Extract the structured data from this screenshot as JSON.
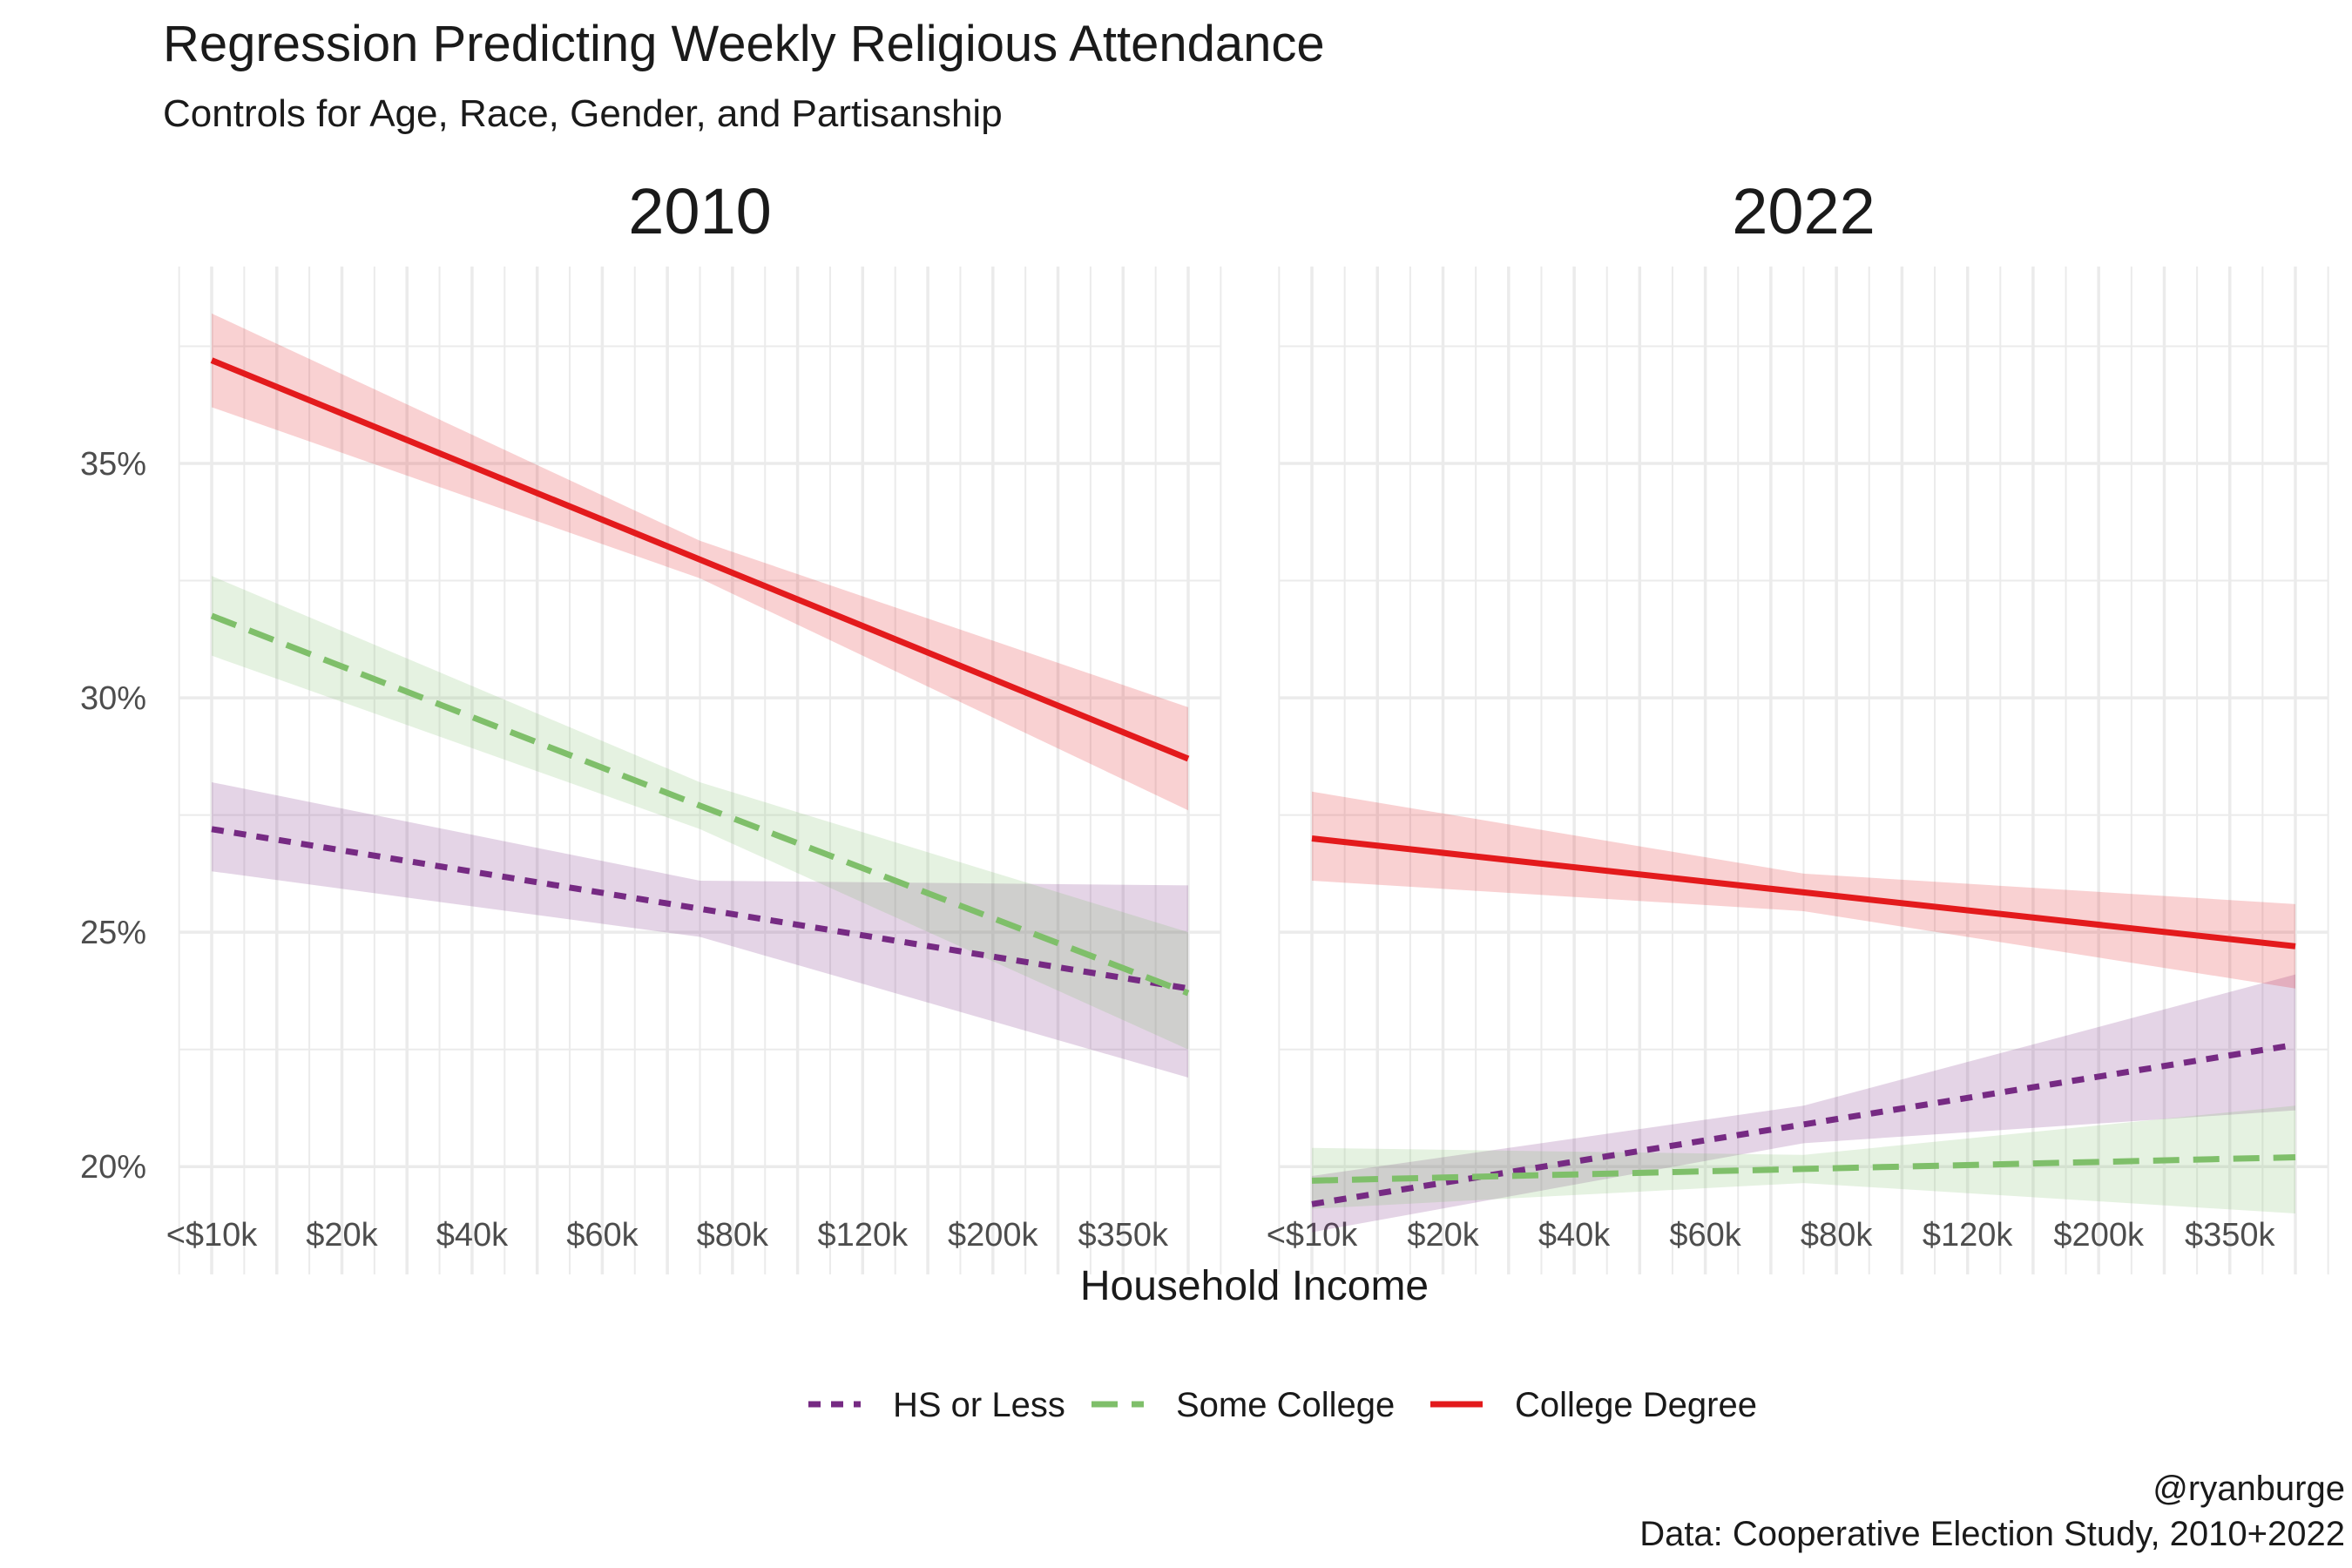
{
  "chart_data": {
    "type": "line",
    "title": "Regression Predicting Weekly Religious Attendance",
    "subtitle": "Controls for Age, Race, Gender, and Partisanship",
    "xlabel": "Household Income",
    "ylabel": "",
    "x_tick_values": [
      1,
      3,
      5,
      7,
      9,
      11,
      13,
      15
    ],
    "x_tick_labels": [
      "<$10k",
      "$20k",
      "$40k",
      "$60k",
      "$80k",
      "$120k",
      "$200k",
      "$350k"
    ],
    "xlim": [
      0.5,
      16.5
    ],
    "y_ticks": [
      20,
      25,
      30,
      35
    ],
    "y_tick_labels": [
      "20%",
      "25%",
      "30%",
      "35%"
    ],
    "ylim": [
      17.7,
      39.2
    ],
    "grid": true,
    "legend_position": "bottom",
    "legend": [
      {
        "name": "HS or Less",
        "color": "#762a83",
        "dash": "dotted"
      },
      {
        "name": "Some College",
        "color": "#7fbf6a",
        "dash": "dashed"
      },
      {
        "name": "College Degree",
        "color": "#e31a1c",
        "dash": "solid"
      }
    ],
    "caption": [
      "@ryanburge",
      "Data: Cooperative Election Study, 2010+2022"
    ],
    "fit_x": [
      1,
      8.5,
      16
    ],
    "panels": [
      {
        "label": "2010",
        "series": [
          {
            "name": "HS or Less",
            "y": [
              27.2,
              25.5,
              23.8
            ],
            "lower": [
              26.3,
              24.9,
              21.9
            ],
            "upper": [
              28.2,
              26.1,
              26.0
            ]
          },
          {
            "name": "Some College",
            "y": [
              31.75,
              27.7,
              23.7
            ],
            "lower": [
              30.9,
              27.2,
              22.5
            ],
            "upper": [
              32.6,
              28.2,
              25.0
            ]
          },
          {
            "name": "College Degree",
            "y": [
              37.2,
              32.95,
              28.7
            ],
            "lower": [
              36.2,
              32.55,
              27.6
            ],
            "upper": [
              38.2,
              33.35,
              29.8
            ]
          }
        ]
      },
      {
        "label": "2022",
        "series": [
          {
            "name": "HS or Less",
            "y": [
              19.2,
              20.9,
              22.6
            ],
            "lower": [
              18.6,
              20.5,
              21.2
            ],
            "upper": [
              19.8,
              21.3,
              24.1
            ]
          },
          {
            "name": "Some College",
            "y": [
              19.7,
              19.95,
              20.2
            ],
            "lower": [
              19.1,
              19.65,
              19.0
            ],
            "upper": [
              20.4,
              20.25,
              21.3
            ]
          },
          {
            "name": "College Degree",
            "y": [
              27.0,
              25.85,
              24.7
            ],
            "lower": [
              26.1,
              25.45,
              23.8
            ],
            "upper": [
              28.0,
              26.25,
              25.6
            ]
          }
        ]
      }
    ]
  }
}
